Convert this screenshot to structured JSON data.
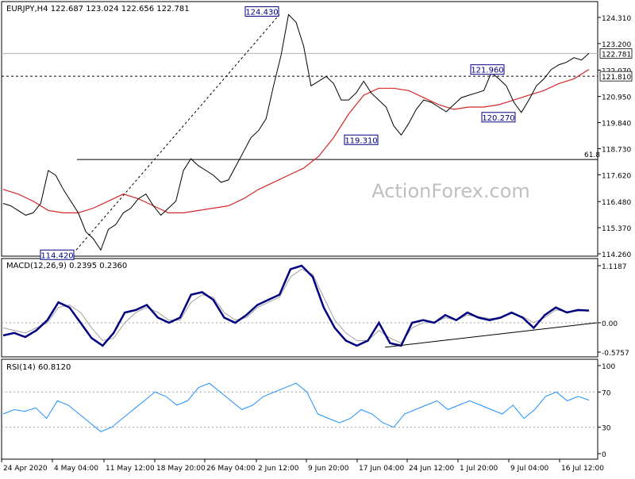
{
  "chart_data": [
    {
      "type": "line",
      "panel": "price",
      "title": "EURJPY,H4  122.687 123.024 122.656 122.781",
      "watermark": "ActionForex.com",
      "ylim": [
        114.26,
        124.31
      ],
      "y_ticks": [
        "124.310",
        "123.200",
        "122.070",
        "120.950",
        "119.840",
        "118.730",
        "117.620",
        "116.480",
        "115.370",
        "114.260"
      ],
      "x_ticks": [
        "24 Apr 2020",
        "4 May 04:00",
        "11 May 12:00",
        "18 May 20:00",
        "26 May 04:00",
        "2 Jun 12:00",
        "9 Jun 20:00",
        "17 Jun 04:00",
        "24 Jun 12:00",
        "1 Jul 20:00",
        "9 Jul 04:00",
        "16 Jul 12:00"
      ],
      "price": [
        116.4,
        116.3,
        116.1,
        115.9,
        116.0,
        116.4,
        117.8,
        117.6,
        117.0,
        116.5,
        116.0,
        115.2,
        114.9,
        114.42,
        115.3,
        115.5,
        116.0,
        116.2,
        116.6,
        116.8,
        116.3,
        115.9,
        116.2,
        116.5,
        117.8,
        118.3,
        118.0,
        117.8,
        117.6,
        117.3,
        117.4,
        118.0,
        118.6,
        119.2,
        119.5,
        120.0,
        121.4,
        122.7,
        124.43,
        124.1,
        123.1,
        121.4,
        121.6,
        121.8,
        121.5,
        120.8,
        120.8,
        121.1,
        121.6,
        121.1,
        120.8,
        120.5,
        119.7,
        119.31,
        119.8,
        120.4,
        120.8,
        120.7,
        120.5,
        120.3,
        120.6,
        120.9,
        121.0,
        121.1,
        121.2,
        121.96,
        121.7,
        121.4,
        120.7,
        120.27,
        120.8,
        121.4,
        121.7,
        122.1,
        122.3,
        122.4,
        122.6,
        122.5,
        122.781
      ],
      "series": [
        {
          "name": "",
          "color": "#d62728",
          "values": [
            117.0,
            116.8,
            116.5,
            116.1,
            116.0,
            116.0,
            116.2,
            116.5,
            116.8,
            116.6,
            116.3,
            116.0,
            116.0,
            116.1,
            116.2,
            116.3,
            116.6,
            117.0,
            117.3,
            117.6,
            117.9,
            118.4,
            119.2,
            120.2,
            121.0,
            121.3,
            121.3,
            121.2,
            120.9,
            120.6,
            120.4,
            120.5,
            120.5,
            120.6,
            120.8,
            121.0,
            121.2,
            121.5,
            121.7,
            122.1
          ]
        },
        {
          "name": "",
          "color": "#000000",
          "values": [
            114.42,
            124.43
          ]
        }
      ],
      "levels": [
        {
          "value": 122.781,
          "label": "122.781",
          "style": "solid-gray"
        },
        {
          "value": 121.81,
          "label": "121.810",
          "style": "dashed"
        },
        {
          "value": 118.27,
          "label": "61.8",
          "style": "solid"
        }
      ],
      "annotations": [
        {
          "text": "124.430",
          "value": 124.43
        },
        {
          "text": "114.420",
          "value": 114.42
        },
        {
          "text": "119.310",
          "value": 119.31
        },
        {
          "text": "121.960",
          "value": 121.96
        },
        {
          "text": "120.270",
          "value": 120.27
        }
      ],
      "last_value_labels": [
        "122.781",
        "121.810"
      ]
    },
    {
      "type": "line",
      "panel": "macd",
      "title": "MACD(12,26,9) 0.2395 0.2360",
      "ylim": [
        -0.5757,
        1.1187
      ],
      "y_ticks": [
        "1.1187",
        "0.00",
        "-0.5757"
      ],
      "series": [
        {
          "name": "",
          "color": "#000080",
          "values": [
            -0.25,
            -0.2,
            -0.28,
            -0.15,
            0.05,
            0.4,
            0.3,
            0.0,
            -0.3,
            -0.45,
            -0.2,
            0.2,
            0.25,
            0.35,
            0.1,
            0.0,
            0.1,
            0.55,
            0.6,
            0.45,
            0.1,
            0.0,
            0.15,
            0.35,
            0.45,
            0.55,
            1.05,
            1.1187,
            0.9,
            0.3,
            -0.1,
            -0.35,
            -0.45,
            -0.35,
            0.0,
            -0.4,
            -0.45,
            0.0,
            0.05,
            0.0,
            0.15,
            0.05,
            0.2,
            0.1,
            0.05,
            0.1,
            0.2,
            0.1,
            -0.1,
            0.15,
            0.3,
            0.2,
            0.25,
            0.2395
          ]
        },
        {
          "name": "",
          "color": "#a0a0a0",
          "values": [
            -0.1,
            -0.15,
            -0.2,
            -0.1,
            0.0,
            0.3,
            0.35,
            0.2,
            -0.1,
            -0.35,
            -0.3,
            0.0,
            0.2,
            0.3,
            0.2,
            0.05,
            0.05,
            0.4,
            0.55,
            0.5,
            0.2,
            0.05,
            0.1,
            0.3,
            0.4,
            0.5,
            0.9,
            1.05,
            0.95,
            0.5,
            0.05,
            -0.2,
            -0.35,
            -0.35,
            -0.15,
            -0.3,
            -0.4,
            -0.1,
            0.0,
            0.0,
            0.1,
            0.05,
            0.15,
            0.12,
            0.08,
            0.1,
            0.18,
            0.12,
            0.0,
            0.1,
            0.25,
            0.22,
            0.23,
            0.236
          ]
        }
      ],
      "trendline": [
        -0.48,
        0.0
      ]
    },
    {
      "type": "line",
      "panel": "rsi",
      "title": "RSI(14) 60.8120",
      "ylim": [
        0,
        100
      ],
      "y_ticks": [
        "100",
        "70",
        "30",
        "0"
      ],
      "levels": [
        70,
        30
      ],
      "series": [
        {
          "name": "",
          "color": "#1e90ff",
          "values": [
            45,
            50,
            48,
            52,
            40,
            60,
            55,
            45,
            35,
            25,
            30,
            40,
            50,
            60,
            70,
            65,
            55,
            60,
            75,
            80,
            70,
            60,
            50,
            55,
            65,
            70,
            75,
            80,
            70,
            45,
            40,
            35,
            40,
            50,
            45,
            35,
            30,
            45,
            50,
            55,
            60,
            50,
            55,
            60,
            55,
            50,
            45,
            55,
            40,
            50,
            65,
            70,
            60,
            65,
            60.812
          ]
        }
      ]
    }
  ]
}
